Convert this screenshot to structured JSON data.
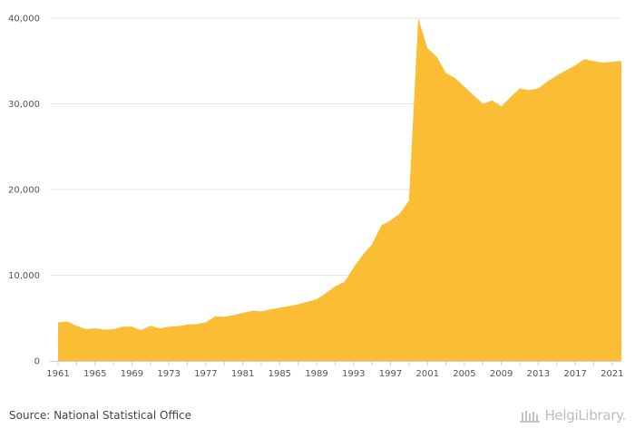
{
  "chart_data": {
    "type": "area",
    "x": [
      1961,
      1962,
      1963,
      1964,
      1965,
      1966,
      1967,
      1968,
      1969,
      1970,
      1971,
      1972,
      1973,
      1974,
      1975,
      1976,
      1977,
      1978,
      1979,
      1980,
      1981,
      1982,
      1983,
      1984,
      1985,
      1986,
      1987,
      1988,
      1989,
      1990,
      1991,
      1992,
      1993,
      1994,
      1995,
      1996,
      1997,
      1998,
      1999,
      2000,
      2001,
      2002,
      2003,
      2004,
      2005,
      2006,
      2007,
      2008,
      2009,
      2010,
      2011,
      2012,
      2013,
      2014,
      2015,
      2016,
      2017,
      2018,
      2019,
      2020,
      2021,
      2022
    ],
    "series": [
      {
        "values": [
          4500,
          4600,
          4100,
          3700,
          3800,
          3650,
          3700,
          4000,
          4000,
          3600,
          4100,
          3800,
          4000,
          4050,
          4250,
          4300,
          4500,
          5200,
          5150,
          5350,
          5600,
          5850,
          5800,
          6000,
          6200,
          6400,
          6600,
          6900,
          7200,
          7900,
          8700,
          9200,
          10900,
          12400,
          13600,
          15800,
          16400,
          17200,
          18700,
          40000,
          36500,
          35500,
          33600,
          33000,
          32000,
          31000,
          30000,
          30400,
          29700,
          30800,
          31800,
          31600,
          31800,
          32600,
          33300,
          33900,
          34500,
          35200,
          35000,
          34800,
          34900,
          35000
        ]
      }
    ],
    "x_tick_labels": [
      "1961",
      "1965",
      "1969",
      "1973",
      "1977",
      "1981",
      "1985",
      "1989",
      "1993",
      "1997",
      "2001",
      "2005",
      "2009",
      "2013",
      "2017",
      "2021"
    ],
    "y_tick_labels": [
      "0",
      "10,000",
      "20,000",
      "30,000",
      "40,000"
    ],
    "ylim": [
      0,
      40000
    ],
    "xlim": [
      1961,
      2022
    ],
    "grid": true,
    "legend": "none",
    "fill_color": "#fbbd33",
    "title": "",
    "xlabel": "",
    "ylabel": ""
  },
  "footer": {
    "source": "Source: National Statistical Office",
    "brand": "HelgiLibrary."
  }
}
